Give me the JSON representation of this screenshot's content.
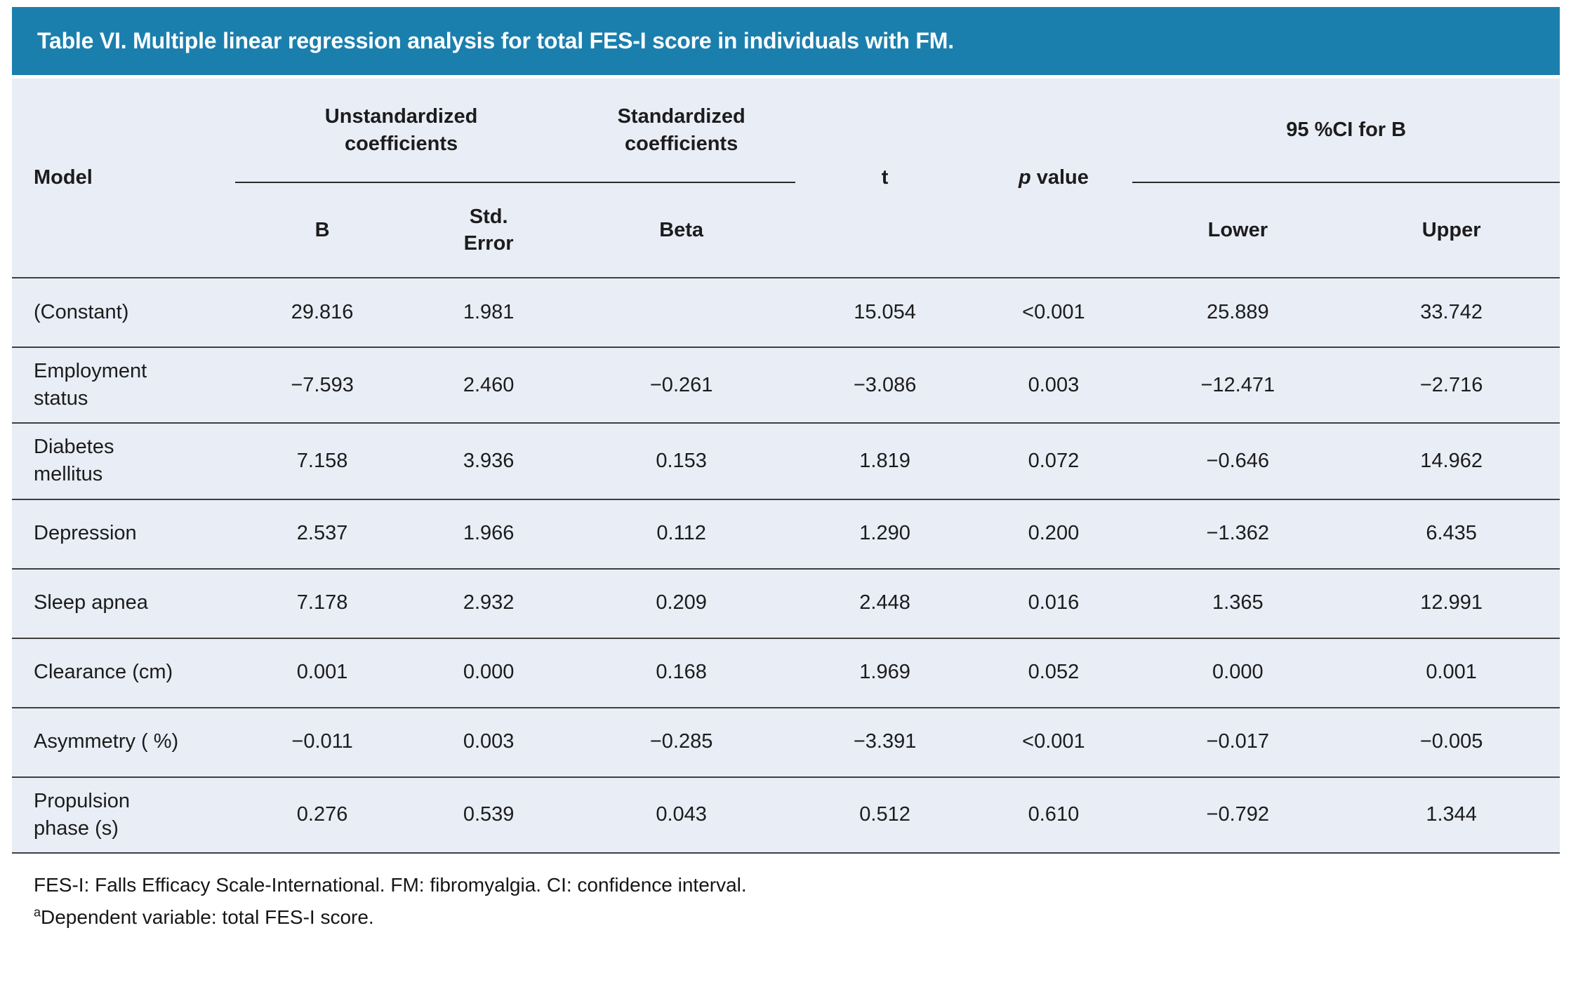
{
  "title": "Table VI. Multiple linear regression analysis for total FES-I score in individuals with FM.",
  "colors": {
    "title_bar_bg": "#1b7fad",
    "title_text": "#ffffff",
    "table_bg": "#e9edf6",
    "row_line": "#3f3f3f",
    "text": "#1c1c1c"
  },
  "header": {
    "model": "Model",
    "unstandardized": "Unstandardized\ncoefficients",
    "standardized": "Standardized\ncoefficients",
    "t": "t",
    "p_symbol": "p",
    "p_rest": " value",
    "ci": "95 %CI for B",
    "b": "B",
    "std_error": "Std.\nError",
    "beta": "Beta",
    "lower": "Lower",
    "upper": "Upper"
  },
  "rows": [
    {
      "model": "(Constant)",
      "b": "29.816",
      "std_error": "1.981",
      "beta": "",
      "t": "15.054",
      "p": "<0.001",
      "lower": "25.889",
      "upper": "33.742"
    },
    {
      "model": "Employment\nstatus",
      "b": "−7.593",
      "std_error": "2.460",
      "beta": "−0.261",
      "t": "−3.086",
      "p": "0.003",
      "lower": "−12.471",
      "upper": "−2.716"
    },
    {
      "model": "Diabetes\nmellitus",
      "b": "7.158",
      "std_error": "3.936",
      "beta": "0.153",
      "t": "1.819",
      "p": "0.072",
      "lower": "−0.646",
      "upper": "14.962"
    },
    {
      "model": "Depression",
      "b": "2.537",
      "std_error": "1.966",
      "beta": "0.112",
      "t": "1.290",
      "p": "0.200",
      "lower": "−1.362",
      "upper": "6.435"
    },
    {
      "model": "Sleep apnea",
      "b": "7.178",
      "std_error": "2.932",
      "beta": "0.209",
      "t": "2.448",
      "p": "0.016",
      "lower": "1.365",
      "upper": "12.991"
    },
    {
      "model": "Clearance (cm)",
      "b": "0.001",
      "std_error": "0.000",
      "beta": "0.168",
      "t": "1.969",
      "p": "0.052",
      "lower": "0.000",
      "upper": "0.001"
    },
    {
      "model": "Asymmetry ( %)",
      "b": "−0.011",
      "std_error": "0.003",
      "beta": "−0.285",
      "t": "−3.391",
      "p": "<0.001",
      "lower": "−0.017",
      "upper": "−0.005"
    },
    {
      "model": "Propulsion\nphase (s)",
      "b": "0.276",
      "std_error": "0.539",
      "beta": "0.043",
      "t": "0.512",
      "p": "0.610",
      "lower": "−0.792",
      "upper": "1.344"
    }
  ],
  "footnotes": {
    "line1": "FES-I: Falls Efficacy Scale-International. FM: fibromyalgia. CI: confidence interval.",
    "line2_sup": "a",
    "line2_text": "Dependent variable: total FES-I score."
  }
}
